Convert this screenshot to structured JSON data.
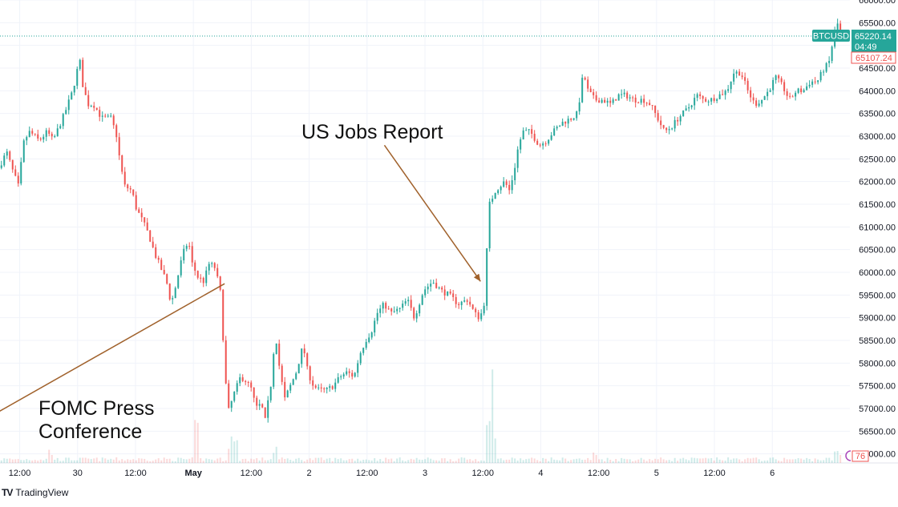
{
  "chart_data": {
    "type": "candlestick",
    "symbol": "BTCUSD",
    "y_axis": {
      "range": [
        55800,
        66000
      ],
      "ticks": [
        "56000.00",
        "56500.00",
        "57000.00",
        "57500.00",
        "58000.00",
        "58500.00",
        "59000.00",
        "59500.00",
        "60000.00",
        "60500.00",
        "61000.00",
        "61500.00",
        "62000.00",
        "62500.00",
        "63000.00",
        "63500.00",
        "64000.00",
        "64500.00",
        "65000.00",
        "65500.00",
        "66000.00"
      ],
      "position": "right"
    },
    "x_axis": {
      "tick_labels": [
        {
          "t": 0.5,
          "label": "12:00"
        },
        {
          "t": 1.0,
          "label": "30"
        },
        {
          "t": 1.5,
          "label": "12:00"
        },
        {
          "t": 2.0,
          "label": "May"
        },
        {
          "t": 2.5,
          "label": "12:00"
        },
        {
          "t": 3.0,
          "label": "2"
        },
        {
          "t": 3.5,
          "label": "12:00"
        },
        {
          "t": 4.0,
          "label": "3"
        },
        {
          "t": 4.5,
          "label": "12:00"
        },
        {
          "t": 5.0,
          "label": "4"
        },
        {
          "t": 5.5,
          "label": "12:00"
        },
        {
          "t": 6.0,
          "label": "5"
        },
        {
          "t": 6.5,
          "label": "12:00"
        },
        {
          "t": 7.0,
          "label": "6"
        }
      ],
      "t_range": [
        0.33,
        7.67
      ],
      "unit": "days from Apr 29 00:00"
    },
    "price_path": [
      [
        0.33,
        62300
      ],
      [
        0.4,
        62650
      ],
      [
        0.45,
        62250
      ],
      [
        0.5,
        61900
      ],
      [
        0.55,
        62900
      ],
      [
        0.6,
        63100
      ],
      [
        0.68,
        62900
      ],
      [
        0.75,
        63100
      ],
      [
        0.8,
        62900
      ],
      [
        0.9,
        63500
      ],
      [
        0.97,
        64000
      ],
      [
        1.03,
        64700
      ],
      [
        1.05,
        64200
      ],
      [
        1.1,
        63700
      ],
      [
        1.15,
        63700
      ],
      [
        1.22,
        63400
      ],
      [
        1.3,
        63400
      ],
      [
        1.35,
        63000
      ],
      [
        1.38,
        62400
      ],
      [
        1.42,
        61900
      ],
      [
        1.48,
        61800
      ],
      [
        1.52,
        61400
      ],
      [
        1.58,
        61100
      ],
      [
        1.63,
        60800
      ],
      [
        1.68,
        60400
      ],
      [
        1.73,
        60100
      ],
      [
        1.78,
        59800
      ],
      [
        1.82,
        59300
      ],
      [
        1.86,
        59700
      ],
      [
        1.92,
        60400
      ],
      [
        1.97,
        60700
      ],
      [
        2.0,
        60200
      ],
      [
        2.05,
        59900
      ],
      [
        2.1,
        59800
      ],
      [
        2.15,
        60200
      ],
      [
        2.2,
        60100
      ],
      [
        2.25,
        59500
      ],
      [
        2.28,
        58000
      ],
      [
        2.31,
        56900
      ],
      [
        2.36,
        57300
      ],
      [
        2.42,
        57700
      ],
      [
        2.47,
        57600
      ],
      [
        2.52,
        57400
      ],
      [
        2.55,
        57000
      ],
      [
        2.6,
        57100
      ],
      [
        2.63,
        56700
      ],
      [
        2.68,
        57500
      ],
      [
        2.72,
        58700
      ],
      [
        2.75,
        58000
      ],
      [
        2.8,
        57200
      ],
      [
        2.85,
        57500
      ],
      [
        2.9,
        57800
      ],
      [
        2.96,
        58400
      ],
      [
        3.0,
        57800
      ],
      [
        3.05,
        57500
      ],
      [
        3.1,
        57400
      ],
      [
        3.16,
        57400
      ],
      [
        3.22,
        57500
      ],
      [
        3.28,
        57700
      ],
      [
        3.34,
        57800
      ],
      [
        3.4,
        57700
      ],
      [
        3.45,
        58200
      ],
      [
        3.5,
        58500
      ],
      [
        3.55,
        58700
      ],
      [
        3.6,
        59100
      ],
      [
        3.66,
        59300
      ],
      [
        3.72,
        59100
      ],
      [
        3.8,
        59200
      ],
      [
        3.86,
        59400
      ],
      [
        3.92,
        59000
      ],
      [
        4.0,
        59600
      ],
      [
        4.08,
        59800
      ],
      [
        4.15,
        59600
      ],
      [
        4.22,
        59500
      ],
      [
        4.3,
        59300
      ],
      [
        4.38,
        59400
      ],
      [
        4.44,
        59100
      ],
      [
        4.48,
        59000
      ],
      [
        4.52,
        59200
      ],
      [
        4.54,
        60200
      ],
      [
        4.57,
        61500
      ],
      [
        4.62,
        61800
      ],
      [
        4.7,
        62000
      ],
      [
        4.74,
        61800
      ],
      [
        4.78,
        62200
      ],
      [
        4.82,
        62800
      ],
      [
        4.86,
        63100
      ],
      [
        4.92,
        63100
      ],
      [
        5.0,
        62800
      ],
      [
        5.06,
        62900
      ],
      [
        5.12,
        63100
      ],
      [
        5.2,
        63300
      ],
      [
        5.28,
        63400
      ],
      [
        5.33,
        63500
      ],
      [
        5.38,
        64400
      ],
      [
        5.42,
        64000
      ],
      [
        5.48,
        63800
      ],
      [
        5.55,
        63800
      ],
      [
        5.62,
        63700
      ],
      [
        5.68,
        63900
      ],
      [
        5.75,
        63900
      ],
      [
        5.82,
        63800
      ],
      [
        5.9,
        63800
      ],
      [
        5.96,
        63700
      ],
      [
        6.02,
        63400
      ],
      [
        6.08,
        63100
      ],
      [
        6.14,
        63200
      ],
      [
        6.2,
        63400
      ],
      [
        6.28,
        63600
      ],
      [
        6.36,
        63900
      ],
      [
        6.42,
        63800
      ],
      [
        6.48,
        63800
      ],
      [
        6.55,
        63900
      ],
      [
        6.62,
        64000
      ],
      [
        6.68,
        64400
      ],
      [
        6.74,
        64400
      ],
      [
        6.8,
        64000
      ],
      [
        6.86,
        63700
      ],
      [
        6.92,
        63800
      ],
      [
        6.98,
        64000
      ],
      [
        7.04,
        64300
      ],
      [
        7.1,
        64100
      ],
      [
        7.16,
        63800
      ],
      [
        7.22,
        64000
      ],
      [
        7.28,
        64000
      ],
      [
        7.34,
        64200
      ],
      [
        7.4,
        64200
      ],
      [
        7.46,
        64500
      ],
      [
        7.5,
        64600
      ],
      [
        7.55,
        65300
      ],
      [
        7.58,
        65500
      ],
      [
        7.6,
        65220
      ]
    ],
    "volume_spikes": [
      [
        0.75,
        1.0
      ],
      [
        2.02,
        2.6
      ],
      [
        2.3,
        2.2
      ],
      [
        2.35,
        1.6
      ],
      [
        2.7,
        1.3
      ],
      [
        4.55,
        2.8
      ],
      [
        4.58,
        2.2
      ],
      [
        5.45,
        0.7
      ],
      [
        7.55,
        0.8
      ]
    ],
    "grid": true,
    "last_price": {
      "symbol_label": "BTCUSD",
      "value": "65220.14",
      "countdown": "04:49",
      "value_raw": 65220.14
    },
    "secondary_price": {
      "value": "65107.24",
      "value_raw": 65107.24
    },
    "volume_badge": "76"
  },
  "annotations": {
    "fomc": {
      "text_line1": "FOMC Press",
      "text_line2": "Conference",
      "arrow_from": [
        2.27,
        59750
      ],
      "arrow_to": [
        0.23,
        56800
      ]
    },
    "jobs": {
      "text": "US Jobs Report",
      "arrow_from": [
        3.65,
        62800
      ],
      "arrow_to": [
        4.48,
        59800
      ]
    }
  },
  "brand": {
    "name": "TradingView",
    "logo_text": "TV"
  },
  "colors": {
    "up": "#26a69a",
    "down": "#ef5350",
    "grid": "#f0f3fa",
    "axis_text": "#131722",
    "arrow": "#a0612b",
    "last_price_bg": "#26a69a",
    "secondary_price_border": "#ef5350",
    "dotted_line": "#26a69a"
  }
}
